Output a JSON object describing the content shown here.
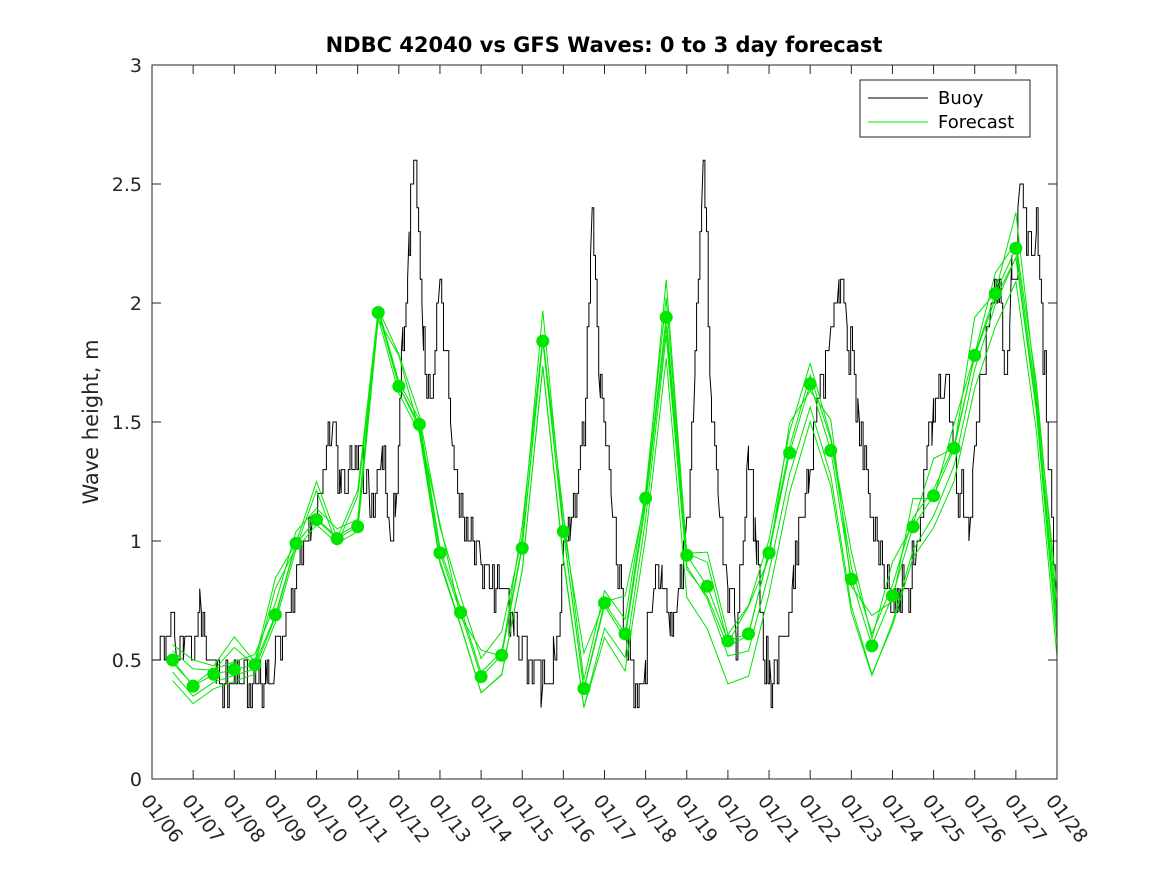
{
  "chart_data": {
    "type": "line",
    "title": "NDBC 42040 vs GFS Waves: 0 to 3 day forecast",
    "xlabel": "",
    "ylabel": "Wave height, m",
    "ylim": [
      0,
      3
    ],
    "yticks": [
      0,
      0.5,
      1,
      1.5,
      2,
      2.5,
      3
    ],
    "ytick_labels": [
      "0",
      "0.5",
      "1",
      "1.5",
      "2",
      "2.5",
      "3"
    ],
    "xlim_days": [
      0,
      22
    ],
    "xtick_labels": [
      "01/06",
      "01/07",
      "01/08",
      "01/09",
      "01/10",
      "01/11",
      "01/12",
      "01/13",
      "01/14",
      "01/15",
      "01/16",
      "01/17",
      "01/18",
      "01/19",
      "01/20",
      "01/21",
      "01/22",
      "01/23",
      "01/24",
      "01/25",
      "01/26",
      "01/27",
      "01/28"
    ],
    "legend": {
      "placement": "top-right",
      "entries": [
        "Buoy",
        "Forecast"
      ]
    },
    "colors": {
      "buoy": "#000000",
      "forecast": "#00e600",
      "axis": "#262626"
    },
    "series": [
      {
        "name": "Buoy",
        "x": [
          0,
          0.2,
          0.3,
          0.5,
          0.6,
          0.8,
          1.0,
          1.2,
          1.4,
          1.6,
          1.8,
          2.0,
          2.4,
          2.8,
          3.0,
          3.3,
          3.6,
          3.9,
          4.2,
          4.4,
          4.6,
          4.9,
          5.1,
          5.3,
          5.6,
          5.8,
          5.95,
          6.1,
          6.25,
          6.4,
          6.6,
          6.8,
          7.0,
          7.3,
          7.6,
          8.0,
          8.4,
          8.8,
          9.2,
          9.5,
          9.8,
          10.0,
          10.2,
          10.5,
          10.7,
          10.9,
          11.2,
          11.5,
          11.8,
          12.0,
          12.2,
          12.4,
          12.6,
          12.8,
          13.0,
          13.2,
          13.4,
          13.6,
          13.8,
          14.0,
          14.2,
          14.5,
          14.7,
          14.9,
          15.05,
          15.2,
          15.4,
          15.6,
          15.8,
          16.0,
          16.2,
          16.5,
          16.7,
          16.9,
          17.2,
          17.5,
          17.8,
          18.0,
          18.2,
          18.4,
          18.6,
          18.8,
          19.0,
          19.3,
          19.6,
          19.9,
          20.0,
          20.2,
          20.4,
          20.6,
          20.8,
          20.9,
          21.0,
          21.1,
          21.3,
          21.5,
          21.7,
          22.0
        ],
        "values": [
          0.6,
          0.5,
          0.6,
          0.7,
          0.5,
          0.6,
          0.5,
          0.7,
          0.5,
          0.45,
          0.4,
          0.4,
          0.4,
          0.4,
          0.5,
          0.7,
          0.9,
          1.1,
          1.3,
          1.5,
          1.2,
          1.3,
          1.4,
          1.1,
          1.4,
          1.0,
          1.2,
          1.9,
          2.3,
          2.6,
          1.8,
          1.6,
          2.1,
          1.4,
          1.1,
          0.9,
          0.8,
          0.6,
          0.5,
          0.4,
          0.5,
          0.9,
          1.1,
          1.5,
          2.4,
          1.6,
          1.1,
          0.6,
          0.35,
          0.5,
          0.8,
          0.9,
          0.6,
          0.8,
          1.1,
          1.7,
          2.6,
          1.6,
          1.1,
          0.8,
          0.6,
          1.4,
          0.9,
          0.5,
          0.4,
          0.5,
          0.6,
          0.9,
          1.1,
          1.3,
          1.6,
          1.9,
          2.1,
          1.9,
          1.5,
          1.1,
          0.9,
          0.7,
          0.8,
          0.8,
          1.0,
          1.3,
          1.6,
          1.7,
          1.2,
          1.1,
          1.4,
          1.7,
          2.0,
          2.0,
          1.7,
          2.2,
          2.1,
          2.5,
          2.2,
          2.3,
          1.7,
          0.65
        ]
      },
      {
        "name": "Forecast",
        "x": [
          0.5,
          1.0,
          1.5,
          2.0,
          2.5,
          3.0,
          3.5,
          4.0,
          4.5,
          5.0,
          5.5,
          6.0,
          6.5,
          7.0,
          7.5,
          8.0,
          8.5,
          9.0,
          9.5,
          10.0,
          10.5,
          11.0,
          11.5,
          12.0,
          12.5,
          13.0,
          13.5,
          14.0,
          14.5,
          15.0,
          15.5,
          16.0,
          16.5,
          17.0,
          17.5,
          18.0,
          18.5,
          19.0,
          19.5,
          20.0,
          20.5,
          21.0,
          21.5,
          22.0
        ],
        "values": [
          0.5,
          0.39,
          0.44,
          0.46,
          0.48,
          0.69,
          0.99,
          1.09,
          1.01,
          1.06,
          1.96,
          1.65,
          1.49,
          0.95,
          0.7,
          0.43,
          0.52,
          0.97,
          1.84,
          1.04,
          0.38,
          0.74,
          0.61,
          1.18,
          1.94,
          0.94,
          0.81,
          0.58,
          0.61,
          0.95,
          1.37,
          1.66,
          1.38,
          0.84,
          0.56,
          0.77,
          1.06,
          1.19,
          1.39,
          1.78,
          2.04,
          2.23,
          1.6,
          0.65
        ]
      }
    ],
    "forecast_markers": {
      "x": [
        0.5,
        1.0,
        1.5,
        2.0,
        2.5,
        3.0,
        3.5,
        4.0,
        4.5,
        5.0,
        5.5,
        6.0,
        6.5,
        7.0,
        7.5,
        8.0,
        8.5,
        9.0,
        9.5,
        10.0,
        10.5,
        11.0,
        11.5,
        12.0,
        12.5,
        13.0,
        13.5,
        14.0,
        14.5,
        15.0,
        15.5,
        16.0,
        16.5,
        17.0,
        17.5,
        18.0,
        18.5,
        19.0,
        19.5,
        20.0,
        20.5,
        21.0
      ],
      "values": [
        0.5,
        0.39,
        0.44,
        0.46,
        0.48,
        0.69,
        0.99,
        1.09,
        1.01,
        1.06,
        1.96,
        1.65,
        1.49,
        0.95,
        0.7,
        0.43,
        0.52,
        0.97,
        1.84,
        1.04,
        0.38,
        0.74,
        0.61,
        1.18,
        1.94,
        0.94,
        0.81,
        0.58,
        0.61,
        0.95,
        1.37,
        1.66,
        1.38,
        0.84,
        0.56,
        0.77,
        1.06,
        1.19,
        1.39,
        1.78,
        2.04,
        2.23
      ]
    }
  }
}
